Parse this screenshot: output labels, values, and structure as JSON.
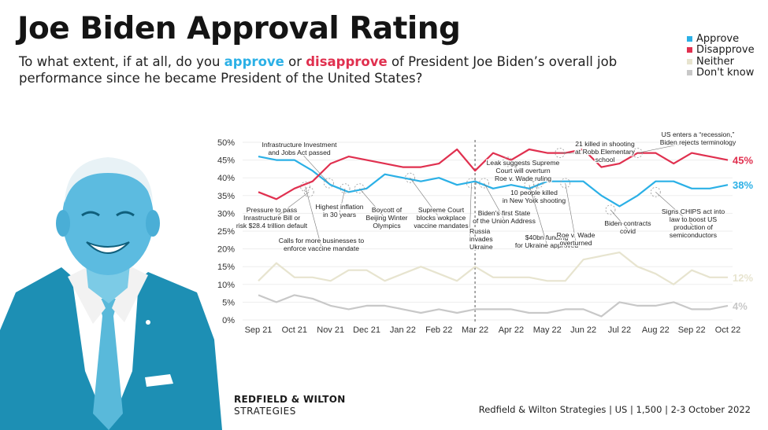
{
  "title": "Joe Biden Approval Rating",
  "subtitle": {
    "part1": "To what extent, if at all, do you ",
    "approve_word": "approve",
    "part2": " or ",
    "disapprove_word": "disapprove",
    "part3": " of President Joe Biden’s overall job performance since he became President of the United States?"
  },
  "colors": {
    "approve": "#2bb0e6",
    "disapprove": "#e0304f",
    "neither": "#e7e4cf",
    "dont_know": "#c8c8c8"
  },
  "brand": {
    "line1": "REDFIELD & WILTON",
    "line2": "STRATEGIES"
  },
  "source": "Redfield & Wilton Strategies | US | 1,500 | 2-3 October 2022",
  "portrait_icon": "joe-biden-portrait",
  "chart_data": {
    "type": "line",
    "title": "Joe Biden Approval Rating",
    "ylim": [
      0,
      50
    ],
    "yticks": [
      "0%",
      "5%",
      "10%",
      "15%",
      "20%",
      "25%",
      "30%",
      "35%",
      "40%",
      "45%",
      "50%"
    ],
    "x_tick_labels": [
      "Sep 21",
      "Oct 21",
      "Nov 21",
      "Dec 21",
      "Jan 22",
      "Feb 22",
      "Mar 22",
      "Apr 22",
      "May 22",
      "Jun 22",
      "Jul 22",
      "Aug 22",
      "Sep 22",
      "Oct 22"
    ],
    "x_range": [
      0,
      26
    ],
    "legend": [
      "Approve",
      "Disapprove",
      "Neither",
      "Don't know"
    ],
    "series": [
      {
        "name": "Approve",
        "color": "#2bb0e6",
        "end_label": "38%",
        "x": [
          0,
          1,
          2,
          3,
          4,
          5,
          6,
          7,
          8,
          9,
          10,
          11,
          12,
          13,
          14,
          15,
          16,
          17,
          18,
          19,
          20,
          21,
          22,
          23,
          24,
          25,
          26
        ],
        "values": [
          46,
          45,
          45,
          42,
          38,
          36,
          37,
          41,
          40,
          39,
          40,
          38,
          39,
          37,
          38,
          37,
          39,
          39,
          39,
          35,
          32,
          35,
          39,
          39,
          37,
          37,
          38
        ]
      },
      {
        "name": "Disapprove",
        "color": "#e0304f",
        "end_label": "45%",
        "x": [
          0,
          1,
          2,
          3,
          4,
          5,
          6,
          7,
          8,
          9,
          10,
          11,
          12,
          13,
          14,
          15,
          16,
          17,
          18,
          19,
          20,
          21,
          22,
          23,
          24,
          25,
          26
        ],
        "values": [
          36,
          34,
          37,
          39,
          44,
          46,
          45,
          44,
          43,
          43,
          44,
          48,
          42,
          47,
          45,
          48,
          47,
          47,
          48,
          43,
          44,
          47,
          47,
          44,
          47,
          46,
          45
        ]
      },
      {
        "name": "Neither",
        "color": "#e7e4cf",
        "end_label": "12%",
        "x": [
          0,
          1,
          2,
          3,
          4,
          5,
          6,
          7,
          8,
          9,
          10,
          11,
          12,
          13,
          14,
          15,
          16,
          17,
          18,
          19,
          20,
          21,
          22,
          23,
          24,
          25,
          26
        ],
        "values": [
          11,
          16,
          12,
          12,
          11,
          14,
          14,
          11,
          13,
          15,
          13,
          11,
          15,
          12,
          12,
          12,
          11,
          11,
          17,
          18,
          19,
          15,
          13,
          10,
          14,
          12,
          12
        ]
      },
      {
        "name": "Don't know",
        "color": "#c8c8c8",
        "end_label": "4%",
        "x": [
          0,
          1,
          2,
          3,
          4,
          5,
          6,
          7,
          8,
          9,
          10,
          11,
          12,
          13,
          14,
          15,
          16,
          17,
          18,
          19,
          20,
          21,
          22,
          23,
          24,
          25,
          26
        ],
        "values": [
          7,
          5,
          7,
          6,
          4,
          3,
          4,
          4,
          3,
          2,
          3,
          2,
          3,
          3,
          3,
          2,
          2,
          3,
          3,
          1,
          5,
          4,
          4,
          5,
          3,
          3,
          4
        ]
      }
    ],
    "event_divider_x": 12.0,
    "annotations": [
      {
        "name": "annotation-infrastructure",
        "x": 3.9,
        "y": 38.5,
        "text": [
          "Infrastructure Investment",
          "and Jobs Act passed"
        ]
      },
      {
        "name": "annotation-pressure",
        "x": 2.8,
        "y": 36.0,
        "text": [
          "Pressure to pass",
          "Inrastructure Bill or",
          "risk $28.4 trillion default"
        ]
      },
      {
        "name": "annotation-vaccine-mandate",
        "x": 2.6,
        "y": 37.5,
        "text": [
          "Calls for more businesses to",
          "enforce vaccine mandate"
        ]
      },
      {
        "name": "annotation-inflation",
        "x": 4.8,
        "y": 37.0,
        "text": [
          "Highest inflation",
          "in 30 years"
        ]
      },
      {
        "name": "annotation-olympics",
        "x": 5.6,
        "y": 37.0,
        "text": [
          "Boycott of",
          "Beijing Winter",
          "Olympics"
        ]
      },
      {
        "name": "annotation-supreme-court-vaccine",
        "x": 8.4,
        "y": 40.0,
        "text": [
          "Supreme Court",
          "blocks wokplace",
          "vaccine mandates"
        ]
      },
      {
        "name": "annotation-russia",
        "x": 11.8,
        "y": 38.5,
        "text": [
          "Russia",
          "invades",
          "Ukraine"
        ]
      },
      {
        "name": "annotation-state-union",
        "x": 12.5,
        "y": 38.5,
        "text": [
          "Biden's first State",
          "of the Union Address"
        ]
      },
      {
        "name": "annotation-leak",
        "x": 13.8,
        "y": 44.5,
        "text": [
          "Leak suggests Supreme",
          "Court will overturn",
          "Roe v. Wade ruling"
        ]
      },
      {
        "name": "annotation-ny-shooting",
        "x": 15.5,
        "y": 38.5,
        "text": [
          "10 people killed",
          "in New York shooting"
        ]
      },
      {
        "name": "annotation-ukraine-funding",
        "x": 15.0,
        "y": 38.0,
        "text": [
          "$40bn funding",
          "for Ukraine approved"
        ]
      },
      {
        "name": "annotation-roe-overturned",
        "x": 17.0,
        "y": 38.5,
        "text": [
          "Roe v. Wade",
          "overturned"
        ]
      },
      {
        "name": "annotation-robb-shooting",
        "x": 16.7,
        "y": 47.0,
        "text": [
          "21 killed in shooting",
          "at Robb Elementary",
          "school"
        ]
      },
      {
        "name": "annotation-covid",
        "x": 19.5,
        "y": 31.0,
        "text": [
          "Biden contracts",
          "covid"
        ]
      },
      {
        "name": "annotation-recession",
        "x": 21.0,
        "y": 47.0,
        "text": [
          "US enters a “recession,”",
          "Biden rejects terminology"
        ]
      },
      {
        "name": "annotation-chips",
        "x": 22.0,
        "y": 36.0,
        "text": [
          "Signs CHIPS act into",
          "law to boost US",
          "production of",
          "semiconductors"
        ]
      }
    ]
  }
}
